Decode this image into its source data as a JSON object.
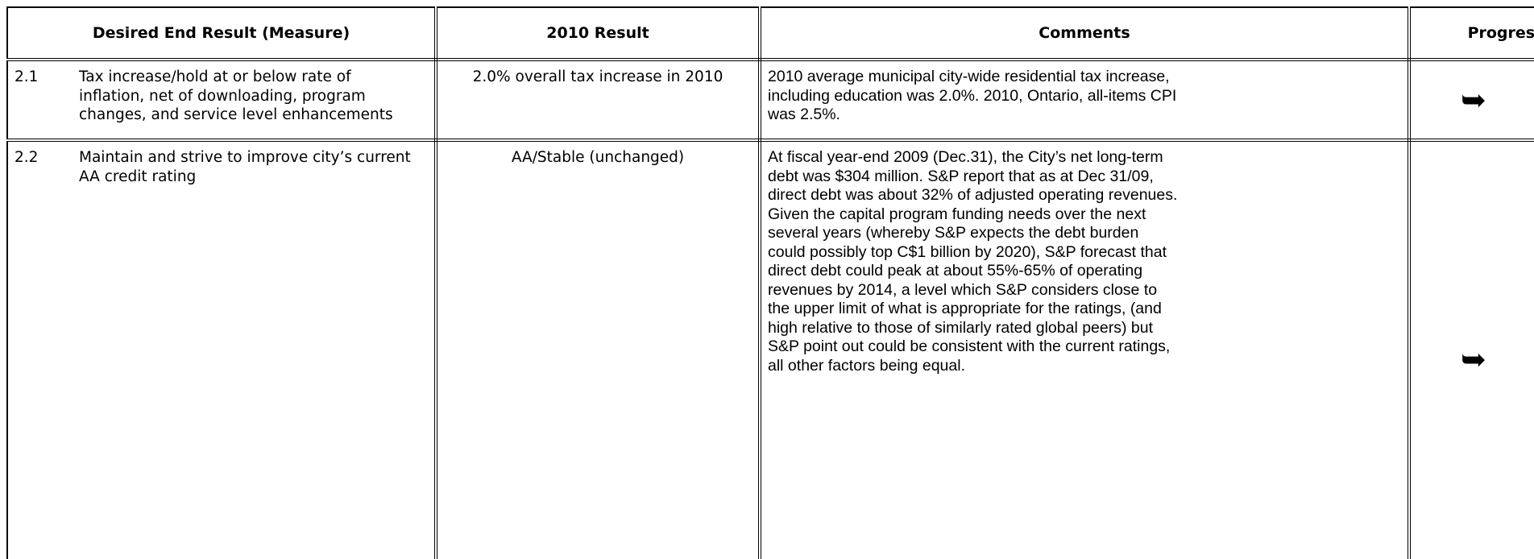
{
  "table": {
    "header": [
      "Desired End Result (Measure)",
      "2010 Result",
      "Comments",
      "Progress"
    ],
    "rows": [
      [
        "2.1",
        "Tax increase/hold at or below rate of inflation, net of downloading, program changes, and service level enhancements",
        "2.0% overall tax increase in 2010",
        "2010 average municipal city-wide residential tax increase, including education was 2.0%.  2010, Ontario, all-items CPI was 2.5%.",
        "➥"
      ],
      [
        "2.2",
        "Maintain and strive to improve city’s current AA credit rating",
        "AA/Stable (unchanged)",
        "At fiscal year-end 2009 (Dec.31), the City’s net long-term debt was $304 million.  S&P report that as at Dec 31/09, direct debt was about 32% of adjusted operating revenues.  Given the capital program funding needs over the next several years (whereby S&P expects the debt burden could possibly top C$1 billion by 2020), S&P forecast that direct debt could peak at about 55%-65% of operating revenues by 2014, a level which S&P considers close to the upper limit of what is appropriate for the ratings, (and high relative to those of similarly rated global peers) but S&P point out could be consistent with the current ratings, all other factors being equal.",
        "➥"
      ]
    ]
  }
}
